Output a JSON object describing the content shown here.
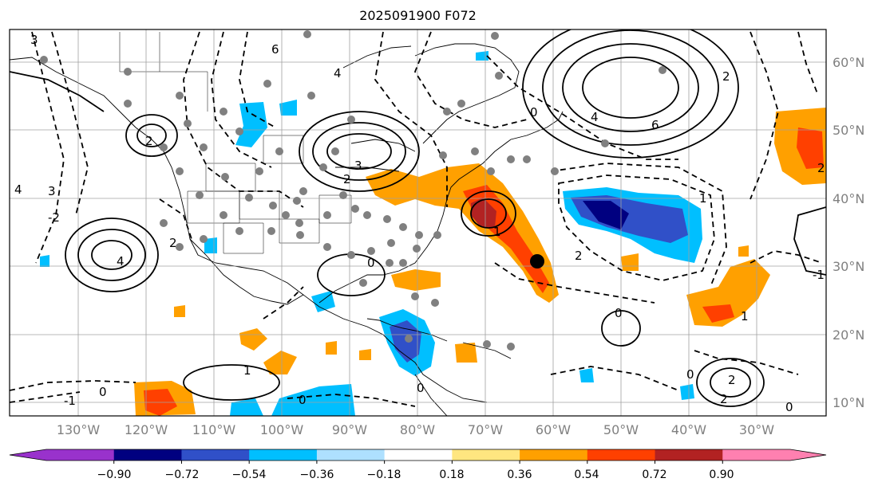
{
  "title": "2025091900 F072",
  "map": {
    "lat_labels": [
      "60°N",
      "50°N",
      "40°N",
      "30°N",
      "20°N",
      "10°N"
    ],
    "lon_labels": [
      "130°W",
      "120°W",
      "110°W",
      "100°W",
      "90°W",
      "80°W",
      "70°W",
      "60°W",
      "50°W",
      "40°W",
      "30°W"
    ],
    "contour_labels": [
      "3",
      "2",
      "6",
      "4",
      "3",
      "4",
      "1",
      "6",
      "2",
      "0",
      "1",
      "4",
      "-2",
      "-1",
      "-1",
      "0",
      "0",
      "0",
      "0",
      "2",
      "2",
      "1",
      "0",
      "3",
      "2",
      "1",
      "0",
      "4",
      "2",
      "2",
      "2",
      "0"
    ]
  },
  "colorbar": {
    "tick_labels": [
      "−0.90",
      "−0.72",
      "−0.54",
      "−0.36",
      "−0.18",
      "0.18",
      "0.36",
      "0.54",
      "0.72",
      "0.90"
    ],
    "colors": {
      "under": "#9932cc",
      "b1": "#9932cc",
      "b2": "#000080",
      "b3": "#3050c8",
      "b4": "#00bfff",
      "b5": "#aee0ff",
      "b6": "#ffffff",
      "b7": "#ffe680",
      "b8": "#ffa000",
      "b9": "#ff4000",
      "b10": "#b22222",
      "b11": "#ff80b0"
    }
  },
  "colors": {
    "land_outline": "#000000",
    "grid": "#a0a0a0",
    "dot": "#808080",
    "storm": "#000000"
  }
}
